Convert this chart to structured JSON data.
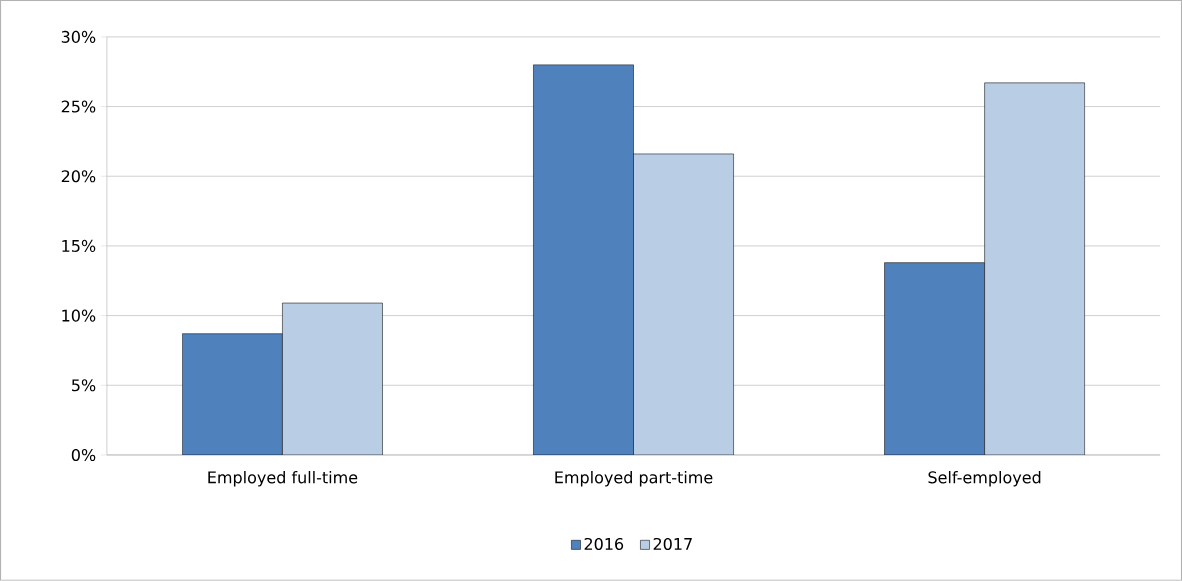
{
  "chart_data": {
    "type": "bar",
    "categories": [
      "Employed full-time",
      "Employed part-time",
      "Self-employed"
    ],
    "series": [
      {
        "name": "2016",
        "color": "#4f81bd",
        "values": [
          8.7,
          28,
          13.8
        ]
      },
      {
        "name": "2017",
        "color": "#b9cde5",
        "values": [
          10.9,
          21.6,
          26.7
        ]
      }
    ],
    "ylim": [
      0,
      30
    ],
    "yticks": [
      {
        "value": 0,
        "label": "0%"
      },
      {
        "value": 5,
        "label": "5%"
      },
      {
        "value": 10,
        "label": "10%"
      },
      {
        "value": 15,
        "label": "15%"
      },
      {
        "value": 20,
        "label": "20%"
      },
      {
        "value": 25,
        "label": "25%"
      },
      {
        "value": 30,
        "label": "30%"
      }
    ],
    "grid": "y",
    "legend": "bottom"
  }
}
